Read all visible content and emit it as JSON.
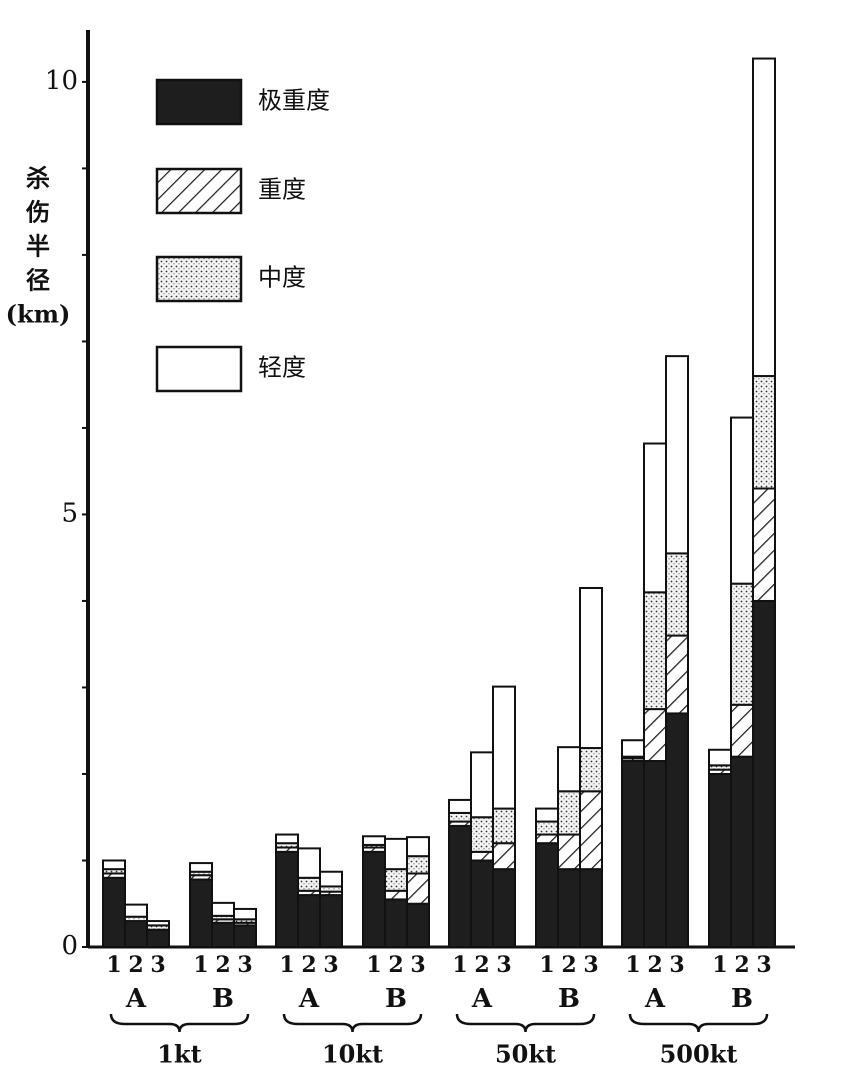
{
  "chart_data": {
    "type": "stacked_bar",
    "ylabel": [
      "杀",
      "伤",
      "半",
      "径",
      "(km)"
    ],
    "ylim": [
      0,
      10.6
    ],
    "yticks": [
      0,
      5,
      10
    ],
    "minor_yticks": [
      1,
      2,
      3,
      4,
      6,
      7,
      8,
      9
    ],
    "groups": [
      {
        "label": "1kt",
        "subgroups": [
          {
            "label": "A",
            "bars": [
              "1",
              "2",
              "3"
            ]
          },
          {
            "label": "B",
            "bars": [
              "1",
              "2",
              "3"
            ]
          }
        ]
      },
      {
        "label": "10kt",
        "subgroups": [
          {
            "label": "A",
            "bars": [
              "1",
              "2",
              "3"
            ]
          },
          {
            "label": "B",
            "bars": [
              "1",
              "2",
              "3"
            ]
          }
        ]
      },
      {
        "label": "50kt",
        "subgroups": [
          {
            "label": "A",
            "bars": [
              "1",
              "2",
              "3"
            ]
          },
          {
            "label": "B",
            "bars": [
              "1",
              "2",
              "3"
            ]
          }
        ]
      },
      {
        "label": "500kt",
        "subgroups": [
          {
            "label": "A",
            "bars": [
              "1",
              "2",
              "3"
            ]
          },
          {
            "label": "B",
            "bars": [
              "1",
              "2",
              "3"
            ]
          }
        ]
      }
    ],
    "series": [
      {
        "name": "极重度",
        "color": "#1e1e1e",
        "pattern": "solid",
        "values": [
          0.8,
          0.3,
          0.2,
          0.78,
          0.28,
          0.25,
          1.1,
          0.6,
          0.6,
          1.1,
          0.55,
          0.5,
          1.4,
          1.0,
          0.9,
          1.2,
          0.9,
          0.9,
          2.15,
          2.15,
          2.7,
          2.0,
          2.2,
          4.0
        ]
      },
      {
        "name": "重度",
        "color": "#1e1e1e",
        "pattern": "hatch",
        "values": [
          0.05,
          0,
          0,
          0.05,
          0.04,
          0.03,
          0.05,
          0.05,
          0.04,
          0.05,
          0.1,
          0.35,
          0.05,
          0.1,
          0.3,
          0.1,
          0.4,
          0.9,
          0.03,
          0.6,
          0.9,
          0.05,
          0.6,
          1.3
        ]
      },
      {
        "name": "中度",
        "color": "#1e1e1e",
        "pattern": "dots",
        "values": [
          0.05,
          0.05,
          0.05,
          0.04,
          0.04,
          0.04,
          0.05,
          0.15,
          0.06,
          0.03,
          0.25,
          0.2,
          0.1,
          0.4,
          0.4,
          0.15,
          0.5,
          0.5,
          0.02,
          1.35,
          0.95,
          0.05,
          1.4,
          1.3
        ]
      },
      {
        "name": "轻度",
        "color": "#1e1e1e",
        "pattern": "none",
        "values": [
          0.1,
          0.14,
          0.05,
          0.1,
          0.15,
          0.12,
          0.1,
          0.34,
          0.17,
          0.1,
          0.35,
          0.22,
          0.15,
          0.75,
          1.41,
          0.15,
          0.51,
          1.85,
          0.19,
          1.72,
          2.28,
          0.18,
          1.92,
          3.67
        ]
      }
    ]
  }
}
